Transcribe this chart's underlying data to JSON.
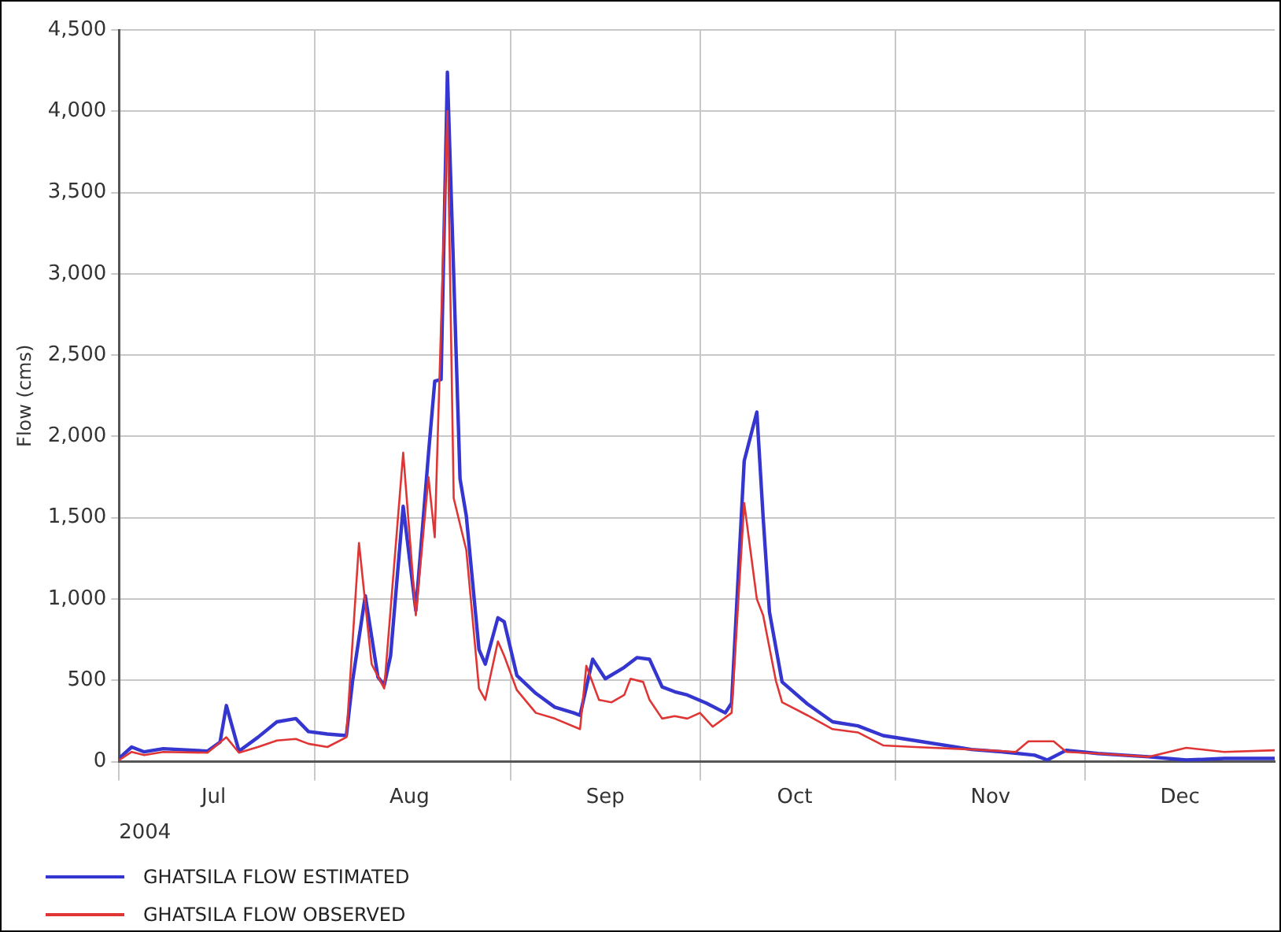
{
  "chart_data": {
    "type": "line",
    "ylabel": "Flow (cms)",
    "xlabel": "2004",
    "xlim": [
      "2004-07-01",
      "2004-12-31"
    ],
    "xticks": [
      {
        "value": "2004-07-01",
        "label": null
      },
      {
        "value": "2004-07-16",
        "label": "Jul"
      },
      {
        "value": "2004-08-01",
        "label": null
      },
      {
        "value": "2004-08-16",
        "label": "Aug"
      },
      {
        "value": "2004-09-01",
        "label": null
      },
      {
        "value": "2004-09-16",
        "label": "Sep"
      },
      {
        "value": "2004-10-01",
        "label": null
      },
      {
        "value": "2004-10-16",
        "label": "Oct"
      },
      {
        "value": "2004-11-01",
        "label": null
      },
      {
        "value": "2004-11-16",
        "label": "Nov"
      },
      {
        "value": "2004-12-01",
        "label": null
      },
      {
        "value": "2004-12-16",
        "label": "Dec"
      }
    ],
    "ylim": [
      0,
      4500
    ],
    "yticks": [
      0,
      500,
      {
        "value": 1000,
        "label": "1,000"
      },
      {
        "value": 1500,
        "label": "1,500"
      },
      {
        "value": 2000,
        "label": "2,000"
      },
      {
        "value": 2500,
        "label": "2,500"
      },
      {
        "value": 3000,
        "label": "3,000"
      },
      {
        "value": 3500,
        "label": "3,500"
      },
      {
        "value": 4000,
        "label": "4,000"
      },
      {
        "value": 4500,
        "label": "4,500"
      }
    ],
    "grid": true,
    "legend": "bottom left",
    "marker": "none",
    "line_style": "solid",
    "series": [
      {
        "name": "GHATSILA FLOW ESTIMATED",
        "color": "#3535d0",
        "x": [
          "2004-07-01",
          "2004-07-03",
          "2004-07-05",
          "2004-07-08",
          "2004-07-15",
          "2004-07-17",
          "2004-07-18",
          "2004-07-20",
          "2004-07-23",
          "2004-07-26",
          "2004-07-29",
          "2004-07-31",
          "2004-08-03",
          "2004-08-06",
          "2004-08-07",
          "2004-08-09",
          "2004-08-11",
          "2004-08-12",
          "2004-08-13",
          "2004-08-15",
          "2004-08-17",
          "2004-08-19",
          "2004-08-20",
          "2004-08-21",
          "2004-08-22",
          "2004-08-24",
          "2004-08-25",
          "2004-08-27",
          "2004-08-28",
          "2004-08-30",
          "2004-08-31",
          "2004-09-02",
          "2004-09-05",
          "2004-09-08",
          "2004-09-11",
          "2004-09-12",
          "2004-09-14",
          "2004-09-16",
          "2004-09-19",
          "2004-09-21",
          "2004-09-23",
          "2004-09-25",
          "2004-09-27",
          "2004-09-29",
          "2004-10-02",
          "2004-10-05",
          "2004-10-06",
          "2004-10-08",
          "2004-10-10",
          "2004-10-11",
          "2004-10-12",
          "2004-10-14",
          "2004-10-18",
          "2004-10-22",
          "2004-10-26",
          "2004-10-30",
          "2004-11-04",
          "2004-11-13",
          "2004-11-18",
          "2004-11-23",
          "2004-11-25",
          "2004-11-28",
          "2004-12-03",
          "2004-12-11",
          "2004-12-17",
          "2004-12-23",
          "2004-12-31"
        ],
        "values": [
          20,
          90,
          60,
          80,
          65,
          120,
          345,
          65,
          150,
          245,
          265,
          185,
          170,
          160,
          500,
          1020,
          520,
          470,
          650,
          1570,
          930,
          1890,
          2340,
          2350,
          4240,
          1740,
          1510,
          690,
          600,
          885,
          860,
          530,
          420,
          335,
          300,
          285,
          630,
          510,
          580,
          640,
          630,
          460,
          430,
          410,
          360,
          300,
          360,
          1850,
          2150,
          1500,
          920,
          490,
          355,
          245,
          220,
          160,
          130,
          75,
          60,
          40,
          10,
          70,
          50,
          30,
          10,
          20,
          20
        ]
      },
      {
        "name": "GHATSILA FLOW OBSERVED",
        "color": "#e03535",
        "x": [
          "2004-07-01",
          "2004-07-03",
          "2004-07-05",
          "2004-07-08",
          "2004-07-15",
          "2004-07-18",
          "2004-07-20",
          "2004-07-23",
          "2004-07-26",
          "2004-07-29",
          "2004-07-31",
          "2004-08-03",
          "2004-08-06",
          "2004-08-08",
          "2004-08-10",
          "2004-08-12",
          "2004-08-15",
          "2004-08-17",
          "2004-08-19",
          "2004-08-20",
          "2004-08-22",
          "2004-08-23",
          "2004-08-25",
          "2004-08-27",
          "2004-08-28",
          "2004-08-30",
          "2004-08-31",
          "2004-09-02",
          "2004-09-05",
          "2004-09-08",
          "2004-09-12",
          "2004-09-13",
          "2004-09-15",
          "2004-09-17",
          "2004-09-19",
          "2004-09-20",
          "2004-09-22",
          "2004-09-23",
          "2004-09-25",
          "2004-09-27",
          "2004-09-29",
          "2004-10-01",
          "2004-10-03",
          "2004-10-06",
          "2004-10-08",
          "2004-10-10",
          "2004-10-11",
          "2004-10-13",
          "2004-10-14",
          "2004-10-18",
          "2004-10-22",
          "2004-10-26",
          "2004-10-30",
          "2004-11-04",
          "2004-11-13",
          "2004-11-20",
          "2004-11-22",
          "2004-11-26",
          "2004-11-28",
          "2004-12-03",
          "2004-12-11",
          "2004-12-17",
          "2004-12-23",
          "2004-12-31"
        ],
        "values": [
          10,
          60,
          40,
          60,
          55,
          150,
          55,
          90,
          130,
          140,
          110,
          90,
          150,
          1345,
          600,
          450,
          1900,
          900,
          1750,
          1380,
          4000,
          1620,
          1300,
          450,
          380,
          740,
          650,
          440,
          300,
          265,
          200,
          590,
          380,
          365,
          410,
          510,
          490,
          380,
          265,
          280,
          265,
          300,
          215,
          300,
          1590,
          1000,
          900,
          500,
          365,
          285,
          200,
          180,
          100,
          90,
          75,
          60,
          125,
          125,
          60,
          50,
          30,
          85,
          60,
          70
        ]
      }
    ]
  }
}
